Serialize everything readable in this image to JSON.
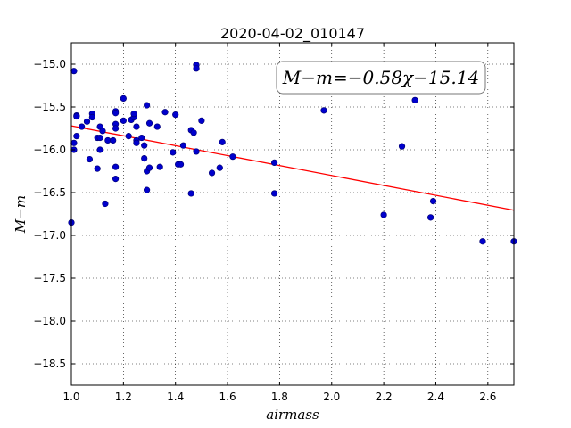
{
  "chart_data": {
    "type": "scatter",
    "title": "2020-04-02_010147",
    "xlabel": "airmass",
    "ylabel": "M−m",
    "xlim": [
      1.0,
      2.7
    ],
    "ylim": [
      -18.75,
      -14.75
    ],
    "y_inverted_display": true,
    "grid": true,
    "x_ticks": [
      "1.0",
      "1.2",
      "1.4",
      "1.6",
      "1.8",
      "2.0",
      "2.2",
      "2.4",
      "2.6"
    ],
    "y_ticks": [
      "−15.0",
      "−15.5",
      "−16.0",
      "−16.5",
      "−17.0",
      "−17.5",
      "−18.0",
      "−18.5"
    ],
    "annotation": "M−m=−0.58χ−15.14",
    "fit_line": {
      "slope": -0.58,
      "intercept": -15.14,
      "color": "#ff0000"
    },
    "point_color": "#0000cc",
    "points": [
      {
        "x": 1.0,
        "y": -16.85
      },
      {
        "x": 1.01,
        "y": -15.08
      },
      {
        "x": 1.01,
        "y": -15.92
      },
      {
        "x": 1.01,
        "y": -16.0
      },
      {
        "x": 1.02,
        "y": -15.6
      },
      {
        "x": 1.02,
        "y": -15.61
      },
      {
        "x": 1.02,
        "y": -15.84
      },
      {
        "x": 1.04,
        "y": -15.73
      },
      {
        "x": 1.06,
        "y": -15.67
      },
      {
        "x": 1.07,
        "y": -16.11
      },
      {
        "x": 1.08,
        "y": -15.58
      },
      {
        "x": 1.08,
        "y": -15.62
      },
      {
        "x": 1.1,
        "y": -15.86
      },
      {
        "x": 1.1,
        "y": -16.22
      },
      {
        "x": 1.11,
        "y": -15.86
      },
      {
        "x": 1.11,
        "y": -16.0
      },
      {
        "x": 1.11,
        "y": -15.73
      },
      {
        "x": 1.12,
        "y": -15.78
      },
      {
        "x": 1.13,
        "y": -16.63
      },
      {
        "x": 1.14,
        "y": -15.89
      },
      {
        "x": 1.16,
        "y": -15.89
      },
      {
        "x": 1.17,
        "y": -15.55
      },
      {
        "x": 1.17,
        "y": -15.57
      },
      {
        "x": 1.17,
        "y": -15.7
      },
      {
        "x": 1.17,
        "y": -15.75
      },
      {
        "x": 1.17,
        "y": -16.2
      },
      {
        "x": 1.17,
        "y": -16.34
      },
      {
        "x": 1.2,
        "y": -15.4
      },
      {
        "x": 1.2,
        "y": -15.66
      },
      {
        "x": 1.22,
        "y": -15.84
      },
      {
        "x": 1.23,
        "y": -15.65
      },
      {
        "x": 1.24,
        "y": -15.62
      },
      {
        "x": 1.24,
        "y": -15.58
      },
      {
        "x": 1.25,
        "y": -15.73
      },
      {
        "x": 1.25,
        "y": -15.89
      },
      {
        "x": 1.25,
        "y": -15.92
      },
      {
        "x": 1.27,
        "y": -15.86
      },
      {
        "x": 1.28,
        "y": -15.95
      },
      {
        "x": 1.28,
        "y": -16.1
      },
      {
        "x": 1.29,
        "y": -15.48
      },
      {
        "x": 1.29,
        "y": -16.25
      },
      {
        "x": 1.29,
        "y": -16.47
      },
      {
        "x": 1.3,
        "y": -16.21
      },
      {
        "x": 1.3,
        "y": -15.69
      },
      {
        "x": 1.33,
        "y": -15.73
      },
      {
        "x": 1.34,
        "y": -16.2
      },
      {
        "x": 1.36,
        "y": -15.56
      },
      {
        "x": 1.39,
        "y": -16.03
      },
      {
        "x": 1.4,
        "y": -15.59
      },
      {
        "x": 1.41,
        "y": -16.17
      },
      {
        "x": 1.42,
        "y": -16.17
      },
      {
        "x": 1.43,
        "y": -15.95
      },
      {
        "x": 1.46,
        "y": -15.77
      },
      {
        "x": 1.46,
        "y": -16.51
      },
      {
        "x": 1.47,
        "y": -15.8
      },
      {
        "x": 1.48,
        "y": -15.01
      },
      {
        "x": 1.48,
        "y": -15.05
      },
      {
        "x": 1.48,
        "y": -16.02
      },
      {
        "x": 1.5,
        "y": -15.66
      },
      {
        "x": 1.54,
        "y": -16.27
      },
      {
        "x": 1.57,
        "y": -16.21
      },
      {
        "x": 1.58,
        "y": -15.91
      },
      {
        "x": 1.62,
        "y": -16.08
      },
      {
        "x": 1.78,
        "y": -16.15
      },
      {
        "x": 1.78,
        "y": -16.51
      },
      {
        "x": 1.97,
        "y": -15.54
      },
      {
        "x": 2.2,
        "y": -16.76
      },
      {
        "x": 2.27,
        "y": -15.96
      },
      {
        "x": 2.32,
        "y": -15.42
      },
      {
        "x": 2.38,
        "y": -16.79
      },
      {
        "x": 2.39,
        "y": -16.6
      },
      {
        "x": 2.58,
        "y": -17.07
      },
      {
        "x": 2.7,
        "y": -17.07
      }
    ]
  }
}
